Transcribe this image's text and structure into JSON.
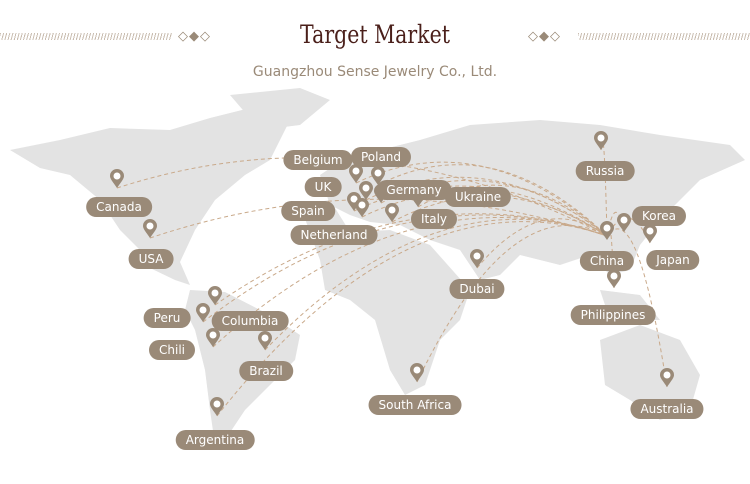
{
  "header": {
    "title": "Target Market",
    "subtitle": "Guangzhou Sense Jewelry Co., Ltd.",
    "ornament_left": "◇◆◇",
    "ornament_right": "◇◆◇"
  },
  "colors": {
    "label_bg": "#9a8a78",
    "title": "#4a1f1a",
    "land": "#e3e3e3",
    "route": "#c9a98a"
  },
  "hub": "China",
  "markets": [
    "Canada",
    "USA",
    "Russia",
    "Belgium",
    "Poland",
    "UK",
    "Germany",
    "Ukraine",
    "Spain",
    "Netherland",
    "Italy",
    "Dubai",
    "China",
    "Korea",
    "Japan",
    "Philippines",
    "Australia",
    "South Africa",
    "Brazil",
    "Columbia",
    "Peru",
    "Chili",
    "Argentina"
  ],
  "icon": "map-pin-icon"
}
